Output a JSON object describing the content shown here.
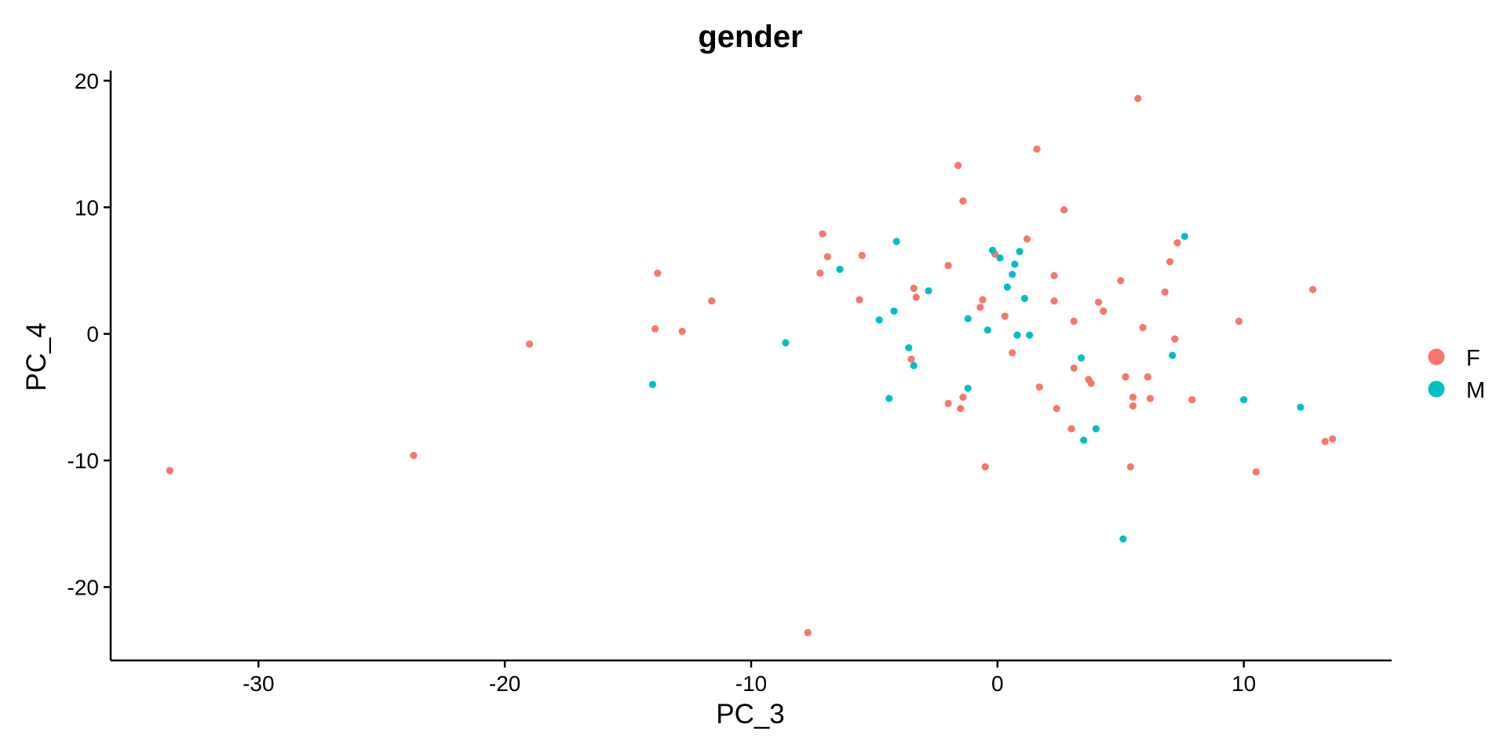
{
  "chart_data": {
    "type": "scatter",
    "title": "gender",
    "xlabel": "PC_3",
    "ylabel": "PC_4",
    "xlim": [
      -36,
      16
    ],
    "ylim": [
      -25.8,
      20.8
    ],
    "xticks": [
      -30,
      -20,
      -10,
      0,
      10
    ],
    "yticks": [
      -20,
      -10,
      0,
      10,
      20
    ],
    "grid": false,
    "legend": "right",
    "series": [
      {
        "name": "F",
        "color": "#F8766D",
        "points": [
          [
            5.7,
            18.6
          ],
          [
            1.6,
            14.6
          ],
          [
            -1.6,
            13.3
          ],
          [
            -1.4,
            10.5
          ],
          [
            2.7,
            9.8
          ],
          [
            -7.1,
            7.9
          ],
          [
            1.2,
            7.5
          ],
          [
            7.3,
            7.2
          ],
          [
            -0.1,
            6.3
          ],
          [
            -6.9,
            6.1
          ],
          [
            -5.5,
            6.2
          ],
          [
            7.0,
            5.7
          ],
          [
            -2.0,
            5.4
          ],
          [
            -13.8,
            4.8
          ],
          [
            -7.2,
            4.8
          ],
          [
            2.3,
            4.6
          ],
          [
            5.0,
            4.2
          ],
          [
            12.8,
            3.5
          ],
          [
            -3.4,
            3.6
          ],
          [
            6.8,
            3.3
          ],
          [
            -3.3,
            2.9
          ],
          [
            -0.6,
            2.7
          ],
          [
            -5.6,
            2.7
          ],
          [
            -11.6,
            2.6
          ],
          [
            2.3,
            2.6
          ],
          [
            4.1,
            2.5
          ],
          [
            -0.7,
            2.1
          ],
          [
            4.3,
            1.8
          ],
          [
            0.3,
            1.4
          ],
          [
            9.8,
            1.0
          ],
          [
            3.1,
            1.0
          ],
          [
            -13.9,
            0.4
          ],
          [
            5.9,
            0.5
          ],
          [
            -12.8,
            0.2
          ],
          [
            7.2,
            -0.4
          ],
          [
            -19.0,
            -0.8
          ],
          [
            0.6,
            -1.5
          ],
          [
            -3.5,
            -2.0
          ],
          [
            3.1,
            -2.7
          ],
          [
            5.2,
            -3.4
          ],
          [
            6.1,
            -3.4
          ],
          [
            3.7,
            -3.6
          ],
          [
            3.8,
            -3.9
          ],
          [
            1.7,
            -4.2
          ],
          [
            5.5,
            -5.0
          ],
          [
            -1.4,
            -5.0
          ],
          [
            6.2,
            -5.1
          ],
          [
            7.9,
            -5.2
          ],
          [
            -2.0,
            -5.5
          ],
          [
            5.5,
            -5.7
          ],
          [
            -1.5,
            -5.9
          ],
          [
            2.4,
            -5.9
          ],
          [
            3.0,
            -7.5
          ],
          [
            13.3,
            -8.5
          ],
          [
            13.6,
            -8.3
          ],
          [
            -23.7,
            -9.6
          ],
          [
            -0.5,
            -10.5
          ],
          [
            5.4,
            -10.5
          ],
          [
            10.5,
            -10.9
          ],
          [
            -33.6,
            -10.8
          ],
          [
            -7.7,
            -23.6
          ]
        ]
      },
      {
        "name": "M",
        "color": "#00BFC4",
        "points": [
          [
            7.6,
            7.7
          ],
          [
            -4.1,
            7.3
          ],
          [
            -0.2,
            6.6
          ],
          [
            0.9,
            6.5
          ],
          [
            0.1,
            6.0
          ],
          [
            0.7,
            5.5
          ],
          [
            -6.4,
            5.1
          ],
          [
            0.6,
            4.7
          ],
          [
            0.4,
            3.7
          ],
          [
            -2.8,
            3.4
          ],
          [
            1.1,
            2.8
          ],
          [
            -4.2,
            1.8
          ],
          [
            -1.2,
            1.2
          ],
          [
            -4.8,
            1.1
          ],
          [
            -0.4,
            0.3
          ],
          [
            0.8,
            -0.1
          ],
          [
            1.3,
            -0.1
          ],
          [
            -8.6,
            -0.7
          ],
          [
            -3.6,
            -1.1
          ],
          [
            3.4,
            -1.9
          ],
          [
            7.1,
            -1.7
          ],
          [
            -3.4,
            -2.5
          ],
          [
            -14.0,
            -4.0
          ],
          [
            -1.2,
            -4.3
          ],
          [
            -4.4,
            -5.1
          ],
          [
            10.0,
            -5.2
          ],
          [
            12.3,
            -5.8
          ],
          [
            4.0,
            -7.5
          ],
          [
            3.5,
            -8.4
          ],
          [
            5.1,
            -16.2
          ]
        ]
      }
    ]
  }
}
